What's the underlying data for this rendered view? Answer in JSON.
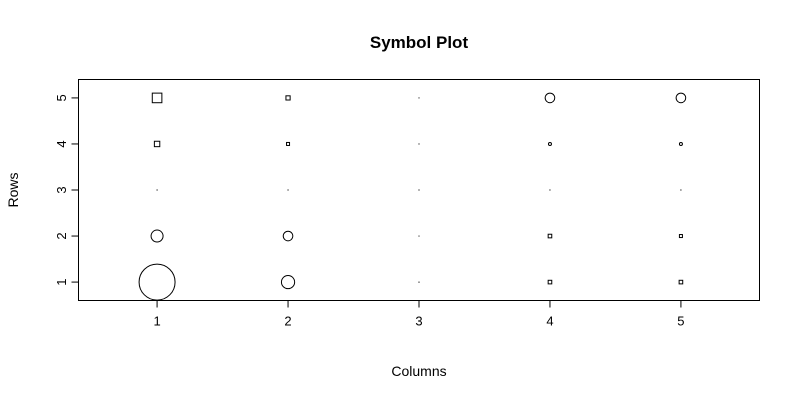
{
  "chart_data": {
    "type": "scatter",
    "title": "Symbol Plot",
    "xlabel": "Columns",
    "ylabel": "Rows",
    "xlim": [
      0.4,
      5.6
    ],
    "ylim": [
      0.6,
      5.4
    ],
    "xticks": [
      1,
      2,
      3,
      4,
      5
    ],
    "yticks": [
      1,
      2,
      3,
      4,
      5
    ],
    "grid": false,
    "points": [
      {
        "x": 1,
        "y": 5,
        "symbol": "square",
        "size": 0.8
      },
      {
        "x": 2,
        "y": 5,
        "symbol": "square",
        "size": 0.35
      },
      {
        "x": 3,
        "y": 5,
        "symbol": "dot",
        "size": 0.1
      },
      {
        "x": 4,
        "y": 5,
        "symbol": "circle",
        "size": 0.8
      },
      {
        "x": 5,
        "y": 5,
        "symbol": "circle",
        "size": 0.8
      },
      {
        "x": 1,
        "y": 4,
        "symbol": "square",
        "size": 0.45
      },
      {
        "x": 2,
        "y": 4,
        "symbol": "square",
        "size": 0.25
      },
      {
        "x": 3,
        "y": 4,
        "symbol": "dot",
        "size": 0.1
      },
      {
        "x": 4,
        "y": 4,
        "symbol": "circle",
        "size": 0.25
      },
      {
        "x": 5,
        "y": 4,
        "symbol": "circle",
        "size": 0.25
      },
      {
        "x": 1,
        "y": 3,
        "symbol": "dot",
        "size": 0.1
      },
      {
        "x": 2,
        "y": 3,
        "symbol": "dot",
        "size": 0.1
      },
      {
        "x": 3,
        "y": 3,
        "symbol": "dot",
        "size": 0.1
      },
      {
        "x": 4,
        "y": 3,
        "symbol": "dot",
        "size": 0.1
      },
      {
        "x": 5,
        "y": 3,
        "symbol": "dot",
        "size": 0.1
      },
      {
        "x": 1,
        "y": 2,
        "symbol": "circle",
        "size": 1.0
      },
      {
        "x": 2,
        "y": 2,
        "symbol": "circle",
        "size": 0.8
      },
      {
        "x": 3,
        "y": 2,
        "symbol": "dot",
        "size": 0.1
      },
      {
        "x": 4,
        "y": 2,
        "symbol": "square",
        "size": 0.3
      },
      {
        "x": 5,
        "y": 2,
        "symbol": "square",
        "size": 0.25
      },
      {
        "x": 1,
        "y": 1,
        "symbol": "circle",
        "size": 3.0
      },
      {
        "x": 2,
        "y": 1,
        "symbol": "circle",
        "size": 1.1
      },
      {
        "x": 3,
        "y": 1,
        "symbol": "dot",
        "size": 0.1
      },
      {
        "x": 4,
        "y": 1,
        "symbol": "square",
        "size": 0.3
      },
      {
        "x": 5,
        "y": 1,
        "symbol": "square",
        "size": 0.3
      }
    ]
  }
}
